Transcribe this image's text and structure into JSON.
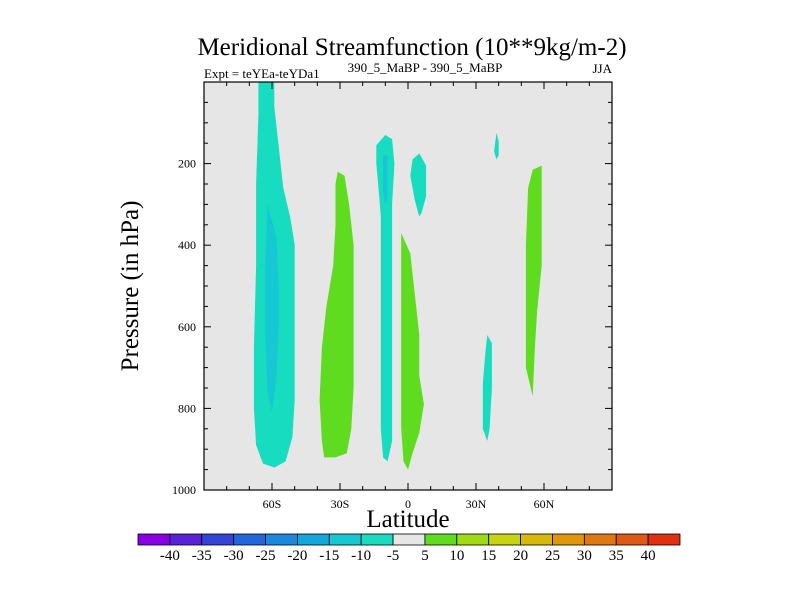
{
  "chart_data": {
    "type": "filled-contour",
    "title": "Meridional Streamfunction (10**9kg/m-2)",
    "subtitle_left": "Expt = teYEa-teYDa1",
    "subtitle_center": "390_5_MaBP - 390_5_MaBP",
    "subtitle_right": "JJA",
    "xlabel": "Latitude",
    "ylabel": "Pressure (in hPa)",
    "xlim": [
      -90,
      90
    ],
    "ylim": [
      1000,
      0
    ],
    "x_ticks": [
      {
        "value": -60,
        "label": "60S"
      },
      {
        "value": -30,
        "label": "30S"
      },
      {
        "value": 0,
        "label": "0"
      },
      {
        "value": 30,
        "label": "30N"
      },
      {
        "value": 60,
        "label": "60N"
      }
    ],
    "y_ticks": [
      {
        "value": 200,
        "label": "200"
      },
      {
        "value": 400,
        "label": "400"
      },
      {
        "value": 600,
        "label": "600"
      },
      {
        "value": 800,
        "label": "800"
      },
      {
        "value": 1000,
        "label": "1000"
      }
    ],
    "colorbar": {
      "levels": [
        "-40",
        "-35",
        "-30",
        "-25",
        "-20",
        "-15",
        "-10",
        "-5",
        "5",
        "10",
        "15",
        "20",
        "25",
        "30",
        "35",
        "40"
      ],
      "colors": [
        "#8a00e6",
        "#5a22d8",
        "#3344d6",
        "#2266dd",
        "#1a88dd",
        "#12a8dc",
        "#14c8d4",
        "#18dcc0",
        "#e6e6e6",
        "#5fdc20",
        "#9cdc10",
        "#c8d410",
        "#d8b808",
        "#e09808",
        "#e07810",
        "#e05818",
        "#e03010"
      ]
    },
    "regions": [
      {
        "label": "-5 to -10 (SH high latitude column)",
        "level": "-5",
        "color": "#18dcc0",
        "points": [
          [
            -66,
            0
          ],
          [
            -59,
            0
          ],
          [
            -59,
            60
          ],
          [
            -57,
            160
          ],
          [
            -55,
            260
          ],
          [
            -52,
            330
          ],
          [
            -50,
            400
          ],
          [
            -50,
            500
          ],
          [
            -50,
            650
          ],
          [
            -50,
            780
          ],
          [
            -51,
            870
          ],
          [
            -54,
            930
          ],
          [
            -59,
            945
          ],
          [
            -64,
            935
          ],
          [
            -67,
            890
          ],
          [
            -68,
            800
          ],
          [
            -68,
            650
          ],
          [
            -67,
            450
          ],
          [
            -67,
            250
          ],
          [
            -66,
            80
          ]
        ]
      },
      {
        "label": "-10 to -15 (core)",
        "level": "-10",
        "color": "#14c8d4",
        "points": [
          [
            -62,
            300
          ],
          [
            -58,
            380
          ],
          [
            -57,
            500
          ],
          [
            -57,
            600
          ],
          [
            -58,
            720
          ],
          [
            -60,
            810
          ],
          [
            -62,
            760
          ],
          [
            -63,
            620
          ],
          [
            -63,
            450
          ]
        ]
      },
      {
        "label": "5 to 10 (30S lobe)",
        "level": "5",
        "color": "#5fdc20",
        "points": [
          [
            -31,
            220
          ],
          [
            -28,
            230
          ],
          [
            -26,
            300
          ],
          [
            -24,
            400
          ],
          [
            -24,
            520
          ],
          [
            -24,
            650
          ],
          [
            -24,
            750
          ],
          [
            -25,
            850
          ],
          [
            -27,
            910
          ],
          [
            -32,
            920
          ],
          [
            -37,
            920
          ],
          [
            -38,
            880
          ],
          [
            -39,
            780
          ],
          [
            -38,
            650
          ],
          [
            -36,
            550
          ],
          [
            -33,
            450
          ],
          [
            -32,
            350
          ],
          [
            -32,
            250
          ]
        ]
      },
      {
        "label": "-5 to -10 (equatorial narrow column)",
        "level": "-5",
        "color": "#18dcc0",
        "points": [
          [
            -14,
            200
          ],
          [
            -14,
            155
          ],
          [
            -10,
            130
          ],
          [
            -7,
            140
          ],
          [
            -6,
            200
          ],
          [
            -7,
            300
          ],
          [
            -7,
            450
          ],
          [
            -7,
            600
          ],
          [
            -7,
            750
          ],
          [
            -7,
            880
          ],
          [
            -9,
            930
          ],
          [
            -11,
            920
          ],
          [
            -12,
            850
          ],
          [
            -12,
            700
          ],
          [
            -12,
            500
          ],
          [
            -12,
            330
          ],
          [
            -13,
            260
          ]
        ]
      },
      {
        "label": "-10 to -15 (equatorial core)",
        "level": "-10",
        "color": "#14c8d4",
        "points": [
          [
            -11,
            180
          ],
          [
            -9,
            180
          ],
          [
            -9,
            280
          ],
          [
            -10,
            300
          ],
          [
            -11,
            270
          ]
        ]
      },
      {
        "label": "-5 (small blob near 0)",
        "level": "-5",
        "color": "#18dcc0",
        "points": [
          [
            2,
            190
          ],
          [
            5,
            175
          ],
          [
            8,
            205
          ],
          [
            8,
            280
          ],
          [
            6,
            320
          ],
          [
            5,
            330
          ],
          [
            3,
            290
          ],
          [
            1,
            230
          ]
        ]
      },
      {
        "label": "5 to 10 (equatorial lobe)",
        "level": "5",
        "color": "#5fdc20",
        "points": [
          [
            -3,
            370
          ],
          [
            1,
            420
          ],
          [
            3,
            520
          ],
          [
            5,
            620
          ],
          [
            5,
            720
          ],
          [
            7,
            790
          ],
          [
            5,
            860
          ],
          [
            2,
            910
          ],
          [
            0,
            950
          ],
          [
            -2,
            930
          ],
          [
            -3,
            850
          ],
          [
            -3,
            650
          ],
          [
            -3,
            470
          ]
        ]
      },
      {
        "label": "-5 (small blob 40N upper)",
        "level": "-5",
        "color": "#18dcc0",
        "points": [
          [
            39,
            125
          ],
          [
            40,
            145
          ],
          [
            40,
            180
          ],
          [
            39,
            190
          ],
          [
            38,
            170
          ]
        ]
      },
      {
        "label": "-5 (30N lower)",
        "level": "-5",
        "color": "#18dcc0",
        "points": [
          [
            35,
            620
          ],
          [
            37,
            640
          ],
          [
            37,
            750
          ],
          [
            36,
            850
          ],
          [
            35,
            880
          ],
          [
            33,
            850
          ],
          [
            33,
            740
          ],
          [
            34,
            670
          ]
        ]
      },
      {
        "label": "5 (60N column)",
        "level": "5",
        "color": "#5fdc20",
        "points": [
          [
            55,
            215
          ],
          [
            59,
            205
          ],
          [
            59,
            300
          ],
          [
            59,
            450
          ],
          [
            57,
            560
          ],
          [
            56,
            650
          ],
          [
            55,
            770
          ],
          [
            52,
            700
          ],
          [
            52,
            550
          ],
          [
            52,
            400
          ],
          [
            53,
            260
          ]
        ]
      }
    ]
  }
}
